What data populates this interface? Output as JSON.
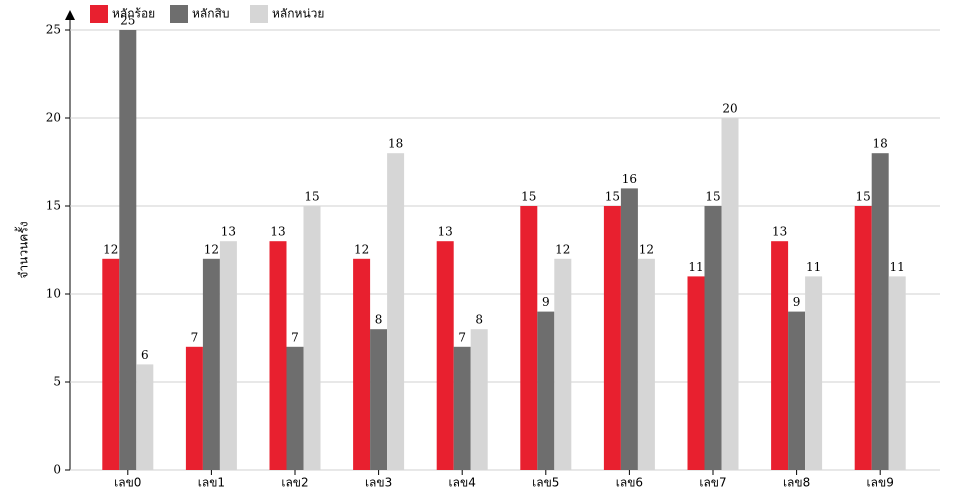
{
  "chart_data": {
    "type": "bar",
    "y_label": "จำนวนครั้ง",
    "categories": [
      "เลข0",
      "เลข1",
      "เลข2",
      "เลข3",
      "เลข4",
      "เลข5",
      "เลข6",
      "เลข7",
      "เลข8",
      "เลข9"
    ],
    "series": [
      {
        "name": "หลักร้อย",
        "color": "#e8202f",
        "values": [
          12,
          7,
          13,
          12,
          13,
          15,
          15,
          11,
          13,
          15
        ]
      },
      {
        "name": "หลักสิบ",
        "color": "#6e6e6e",
        "values": [
          25,
          12,
          7,
          8,
          7,
          9,
          16,
          15,
          9,
          18
        ]
      },
      {
        "name": "หลักหน่วย",
        "color": "#d6d6d6",
        "values": [
          6,
          13,
          15,
          18,
          8,
          12,
          12,
          20,
          11,
          11
        ]
      }
    ],
    "ylim": [
      0,
      25
    ],
    "yticks": [
      0,
      5,
      10,
      15,
      20,
      25
    ],
    "grid": true
  }
}
